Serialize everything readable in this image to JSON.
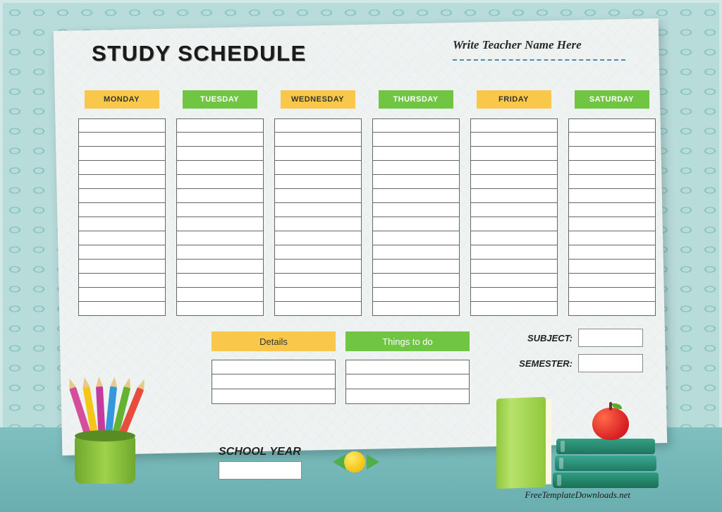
{
  "title": "STUDY SCHEDULE",
  "teacher_placeholder": "Write Teacher Name Here",
  "days": [
    {
      "label": "MONDAY",
      "color": "yellow"
    },
    {
      "label": "TUESDAY",
      "color": "green"
    },
    {
      "label": "WEDNESDAY",
      "color": "yellow"
    },
    {
      "label": "THURSDAY",
      "color": "green"
    },
    {
      "label": "FRIDAY",
      "color": "yellow"
    },
    {
      "label": "SATURDAY",
      "color": "green"
    }
  ],
  "day_rows": 14,
  "bottom_sections": [
    {
      "label": "Details",
      "color": "yellow"
    },
    {
      "label": "Things to do",
      "color": "green"
    }
  ],
  "bottom_rows": 3,
  "fields": {
    "subject": "SUBJECT:",
    "semester": "SEMESTER:"
  },
  "school_year_label": "SCHOOL YEAR",
  "footer": "FreeTemplateDownloads.net",
  "colors": {
    "yellow": "#f9c84a",
    "green": "#70c543",
    "background": "#b8dcda",
    "desk": "#7fc0bf",
    "paper": "#eef3f2"
  }
}
